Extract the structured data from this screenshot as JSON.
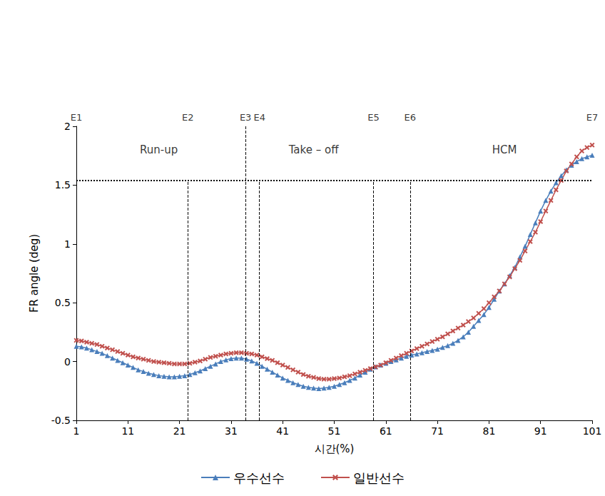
{
  "chart_data": {
    "type": "line",
    "x_label": "시간(%)",
    "y_label": "FR angle (deg)",
    "x": [
      1,
      2,
      3,
      4,
      5,
      6,
      7,
      8,
      9,
      10,
      11,
      12,
      13,
      14,
      15,
      16,
      17,
      18,
      19,
      20,
      21,
      22,
      23,
      24,
      25,
      26,
      27,
      28,
      29,
      30,
      31,
      32,
      33,
      34,
      35,
      36,
      37,
      38,
      39,
      40,
      41,
      42,
      43,
      44,
      45,
      46,
      47,
      48,
      49,
      50,
      51,
      52,
      53,
      54,
      55,
      56,
      57,
      58,
      59,
      60,
      61,
      62,
      63,
      64,
      65,
      66,
      67,
      68,
      69,
      70,
      71,
      72,
      73,
      74,
      75,
      76,
      77,
      78,
      79,
      80,
      81,
      82,
      83,
      84,
      85,
      86,
      87,
      88,
      89,
      90,
      91,
      92,
      93,
      94,
      95,
      96,
      97,
      98,
      99,
      100,
      101
    ],
    "series": [
      {
        "name": "우수선수",
        "color": "#4a7ebb",
        "marker": "triangle",
        "values": [
          0.13,
          0.125,
          0.115,
          0.1,
          0.085,
          0.07,
          0.05,
          0.03,
          0.01,
          -0.01,
          -0.03,
          -0.05,
          -0.07,
          -0.085,
          -0.1,
          -0.11,
          -0.12,
          -0.125,
          -0.13,
          -0.13,
          -0.125,
          -0.12,
          -0.11,
          -0.095,
          -0.08,
          -0.06,
          -0.04,
          -0.02,
          0.0,
          0.015,
          0.025,
          0.03,
          0.03,
          0.02,
          0.005,
          -0.015,
          -0.04,
          -0.065,
          -0.09,
          -0.115,
          -0.14,
          -0.16,
          -0.18,
          -0.195,
          -0.21,
          -0.22,
          -0.225,
          -0.23,
          -0.225,
          -0.22,
          -0.21,
          -0.195,
          -0.18,
          -0.16,
          -0.14,
          -0.115,
          -0.09,
          -0.065,
          -0.045,
          -0.03,
          -0.015,
          0.0,
          0.015,
          0.03,
          0.045,
          0.055,
          0.065,
          0.075,
          0.085,
          0.095,
          0.105,
          0.12,
          0.135,
          0.155,
          0.18,
          0.21,
          0.25,
          0.3,
          0.35,
          0.4,
          0.46,
          0.53,
          0.6,
          0.66,
          0.73,
          0.8,
          0.89,
          0.98,
          1.08,
          1.18,
          1.28,
          1.37,
          1.45,
          1.52,
          1.58,
          1.63,
          1.67,
          1.7,
          1.725,
          1.74,
          1.755
        ]
      },
      {
        "name": "일반선수",
        "color": "#c0504d",
        "marker": "cross",
        "values": [
          0.18,
          0.175,
          0.165,
          0.155,
          0.145,
          0.13,
          0.115,
          0.1,
          0.085,
          0.07,
          0.055,
          0.04,
          0.03,
          0.02,
          0.01,
          0.0,
          -0.005,
          -0.01,
          -0.015,
          -0.02,
          -0.02,
          -0.02,
          -0.015,
          -0.005,
          0.005,
          0.02,
          0.035,
          0.045,
          0.055,
          0.065,
          0.07,
          0.075,
          0.075,
          0.07,
          0.065,
          0.055,
          0.04,
          0.025,
          0.01,
          -0.01,
          -0.03,
          -0.05,
          -0.07,
          -0.09,
          -0.11,
          -0.125,
          -0.135,
          -0.145,
          -0.15,
          -0.15,
          -0.145,
          -0.14,
          -0.13,
          -0.12,
          -0.105,
          -0.09,
          -0.075,
          -0.06,
          -0.045,
          -0.03,
          -0.01,
          0.01,
          0.03,
          0.05,
          0.07,
          0.09,
          0.11,
          0.13,
          0.15,
          0.17,
          0.19,
          0.21,
          0.235,
          0.26,
          0.285,
          0.31,
          0.34,
          0.37,
          0.41,
          0.45,
          0.5,
          0.55,
          0.6,
          0.66,
          0.72,
          0.79,
          0.86,
          0.94,
          1.02,
          1.1,
          1.19,
          1.28,
          1.37,
          1.46,
          1.54,
          1.62,
          1.68,
          1.74,
          1.79,
          1.82,
          1.84
        ]
      }
    ],
    "xlim": [
      1,
      101
    ],
    "xticks": [
      1,
      11,
      21,
      31,
      41,
      51,
      61,
      71,
      81,
      91,
      101
    ],
    "ylim": [
      -0.5,
      2
    ],
    "yticks": [
      -0.5,
      0,
      0.5,
      1,
      1.5,
      2
    ],
    "grid": false,
    "legend": "bottom",
    "events": [
      {
        "label": "E1",
        "x": 1,
        "line_top": null
      },
      {
        "label": "E2",
        "x": 22.6,
        "line_top": 1.54
      },
      {
        "label": "E3",
        "x": 33.8,
        "line_top": 2
      },
      {
        "label": "E4",
        "x": 36.5,
        "line_top": 1.54
      },
      {
        "label": "E5",
        "x": 58.6,
        "line_top": 1.54
      },
      {
        "label": "E6",
        "x": 65.7,
        "line_top": 1.54
      },
      {
        "label": "E7",
        "x": 101,
        "line_top": null
      }
    ],
    "phases": [
      {
        "label": "Run-up",
        "x": 17,
        "y": 1.8
      },
      {
        "label": "Take – off",
        "x": 47,
        "y": 1.8
      },
      {
        "label": "HCM",
        "x": 84,
        "y": 1.8
      }
    ],
    "reference_y": 1.54
  }
}
